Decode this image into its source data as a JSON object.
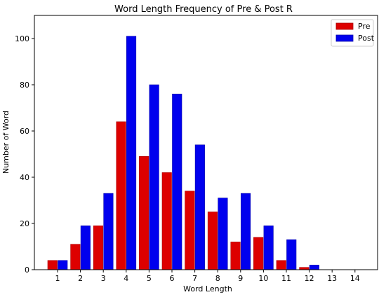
{
  "chart_data": {
    "type": "bar",
    "title": "Word Length Frequency of Pre & Post R",
    "xlabel": "Word Length",
    "ylabel": "Number of Word",
    "categories": [
      "1",
      "2",
      "3",
      "4",
      "5",
      "6",
      "7",
      "8",
      "9",
      "10",
      "11",
      "12",
      "13",
      "14"
    ],
    "series": [
      {
        "name": "Pre",
        "color": "#dd0000",
        "values": [
          4,
          11,
          19,
          64,
          49,
          42,
          34,
          25,
          12,
          14,
          4,
          1,
          0,
          0
        ]
      },
      {
        "name": "Post",
        "color": "#0000ee",
        "values": [
          4,
          19,
          33,
          101,
          80,
          76,
          54,
          31,
          33,
          19,
          13,
          2,
          0,
          0
        ]
      }
    ],
    "ylim": [
      0,
      110
    ],
    "yticks": [
      0,
      20,
      40,
      60,
      80,
      100
    ],
    "grid": false,
    "legend": "top-right"
  }
}
